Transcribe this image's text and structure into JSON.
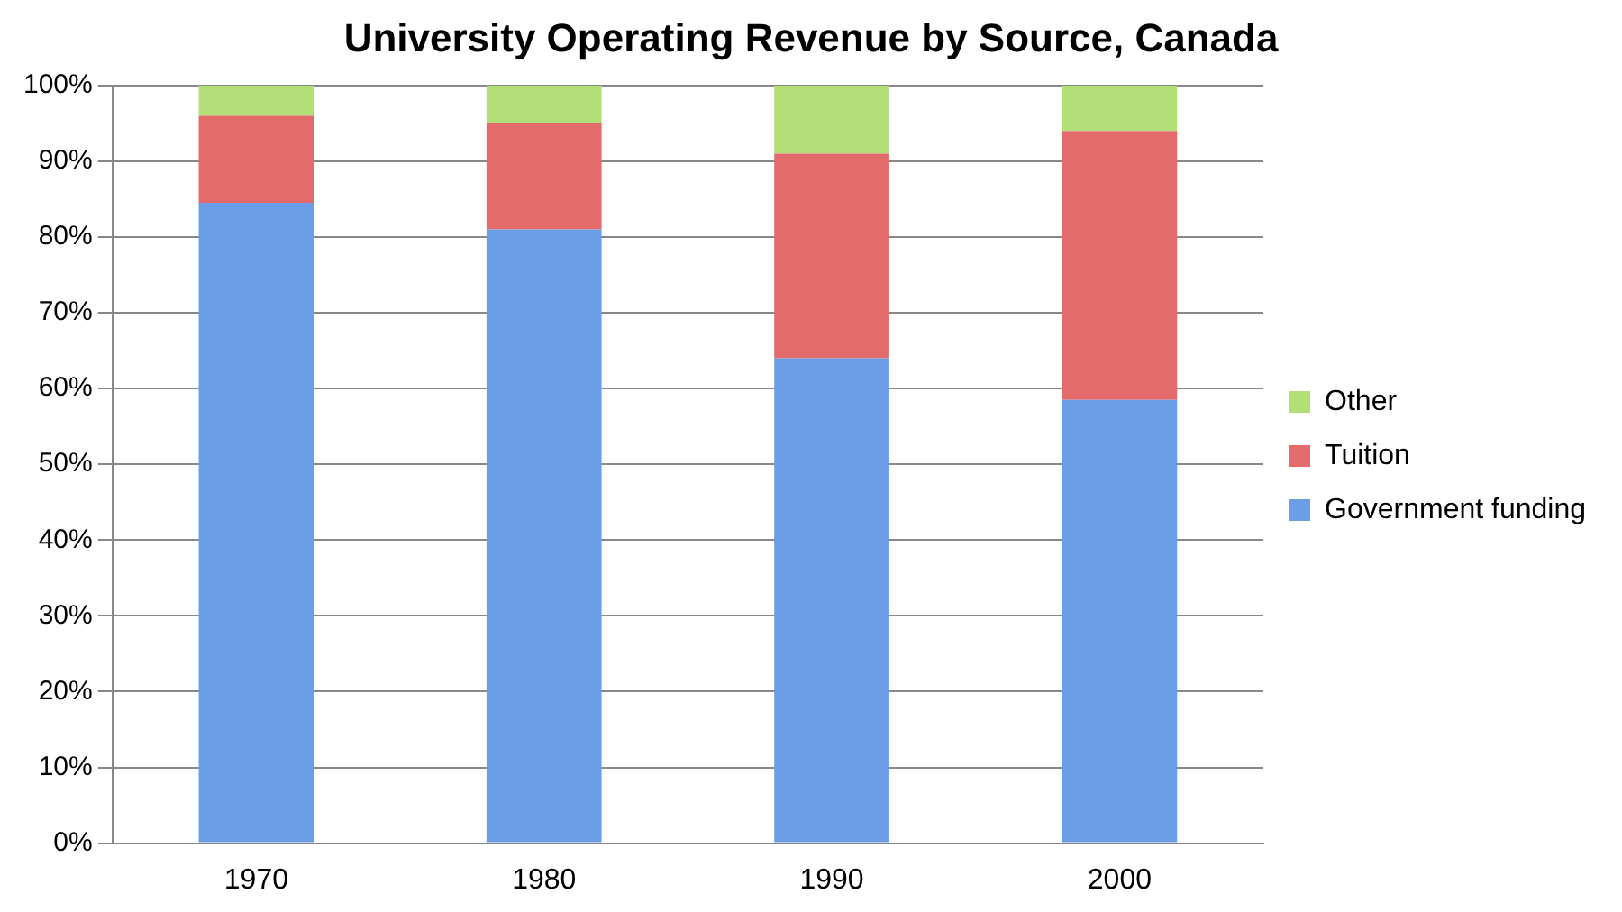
{
  "chart_data": {
    "type": "bar",
    "title": "University Operating Revenue by Source, Canada",
    "categories": [
      "1970",
      "1980",
      "1990",
      "2000"
    ],
    "stacked": true,
    "series": [
      {
        "name": "Government funding",
        "color": "#6a9ee6",
        "values": [
          84.5,
          81,
          64,
          58.5
        ]
      },
      {
        "name": "Tuition",
        "color": "#e46b6b",
        "values": [
          11.5,
          14,
          27,
          35.5
        ]
      },
      {
        "name": "Other",
        "color": "#b3df78",
        "values": [
          4,
          5,
          9,
          6
        ]
      }
    ],
    "ylim": [
      0,
      100
    ],
    "yticks": [
      {
        "value": 0,
        "label": "0%"
      },
      {
        "value": 10,
        "label": "10%"
      },
      {
        "value": 20,
        "label": "20%"
      },
      {
        "value": 30,
        "label": "30%"
      },
      {
        "value": 40,
        "label": "40%"
      },
      {
        "value": 50,
        "label": "50%"
      },
      {
        "value": 60,
        "label": "60%"
      },
      {
        "value": 70,
        "label": "70%"
      },
      {
        "value": 80,
        "label": "80%"
      },
      {
        "value": 90,
        "label": "90%"
      },
      {
        "value": 100,
        "label": "100%"
      }
    ],
    "grid": "y",
    "legend": "right"
  }
}
